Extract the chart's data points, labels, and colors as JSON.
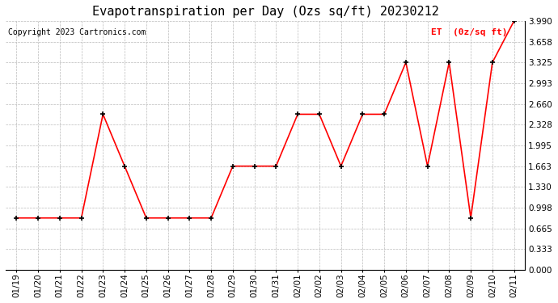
{
  "title": "Evapotranspiration per Day (Ozs sq/ft) 20230212",
  "copyright": "Copyright 2023 Cartronics.com",
  "legend_label": "ET  (0z/sq ft)",
  "dates": [
    "01/19",
    "01/20",
    "01/21",
    "01/22",
    "01/23",
    "01/24",
    "01/25",
    "01/26",
    "01/27",
    "01/28",
    "01/29",
    "01/30",
    "01/31",
    "02/01",
    "02/02",
    "02/03",
    "02/04",
    "02/05",
    "02/06",
    "02/07",
    "02/08",
    "02/09",
    "02/10",
    "02/11"
  ],
  "values": [
    0.832,
    0.832,
    0.832,
    0.832,
    2.494,
    1.663,
    0.832,
    0.832,
    0.832,
    0.832,
    1.663,
    1.663,
    1.663,
    2.494,
    2.494,
    1.663,
    2.494,
    2.494,
    3.325,
    1.663,
    3.325,
    0.832,
    3.325,
    3.99
  ],
  "ylim": [
    0.0,
    3.99
  ],
  "yticks": [
    0.0,
    0.333,
    0.665,
    0.998,
    1.33,
    1.663,
    1.995,
    2.328,
    2.66,
    2.993,
    3.325,
    3.658,
    3.99
  ],
  "line_color": "red",
  "marker_color": "black",
  "background_color": "white",
  "grid_color": "#bbbbbb",
  "title_fontsize": 11,
  "copyright_fontsize": 7,
  "legend_color": "red",
  "tick_fontsize": 7.5,
  "legend_fontsize": 8
}
